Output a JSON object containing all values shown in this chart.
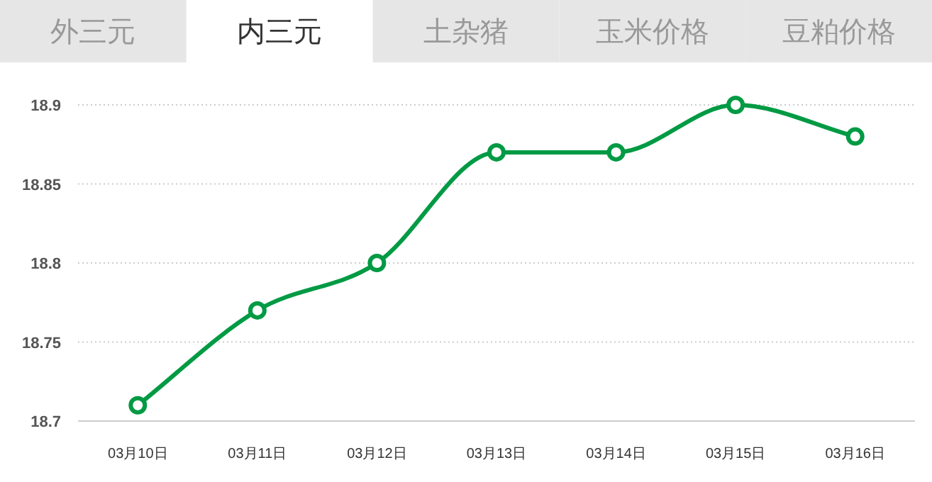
{
  "chart_data": {
    "type": "line",
    "title": "内三元",
    "annotations": [
      "外三元",
      "土杂猪",
      "玉米价格",
      "豆粕价格"
    ],
    "categories": [
      "03月10日",
      "03月11日",
      "03月12日",
      "03月13日",
      "03月14日",
      "03月15日",
      "03月16日"
    ],
    "series": [
      {
        "color": "#009a44",
        "values": [
          18.71,
          18.77,
          18.8,
          18.87,
          18.87,
          18.9,
          18.88
        ]
      }
    ],
    "ylim": [
      18.7,
      18.9
    ],
    "yticks": [
      18.7,
      18.75,
      18.8,
      18.85,
      18.9
    ],
    "grid": "y",
    "marker": "circle",
    "line_style": "solid"
  }
}
